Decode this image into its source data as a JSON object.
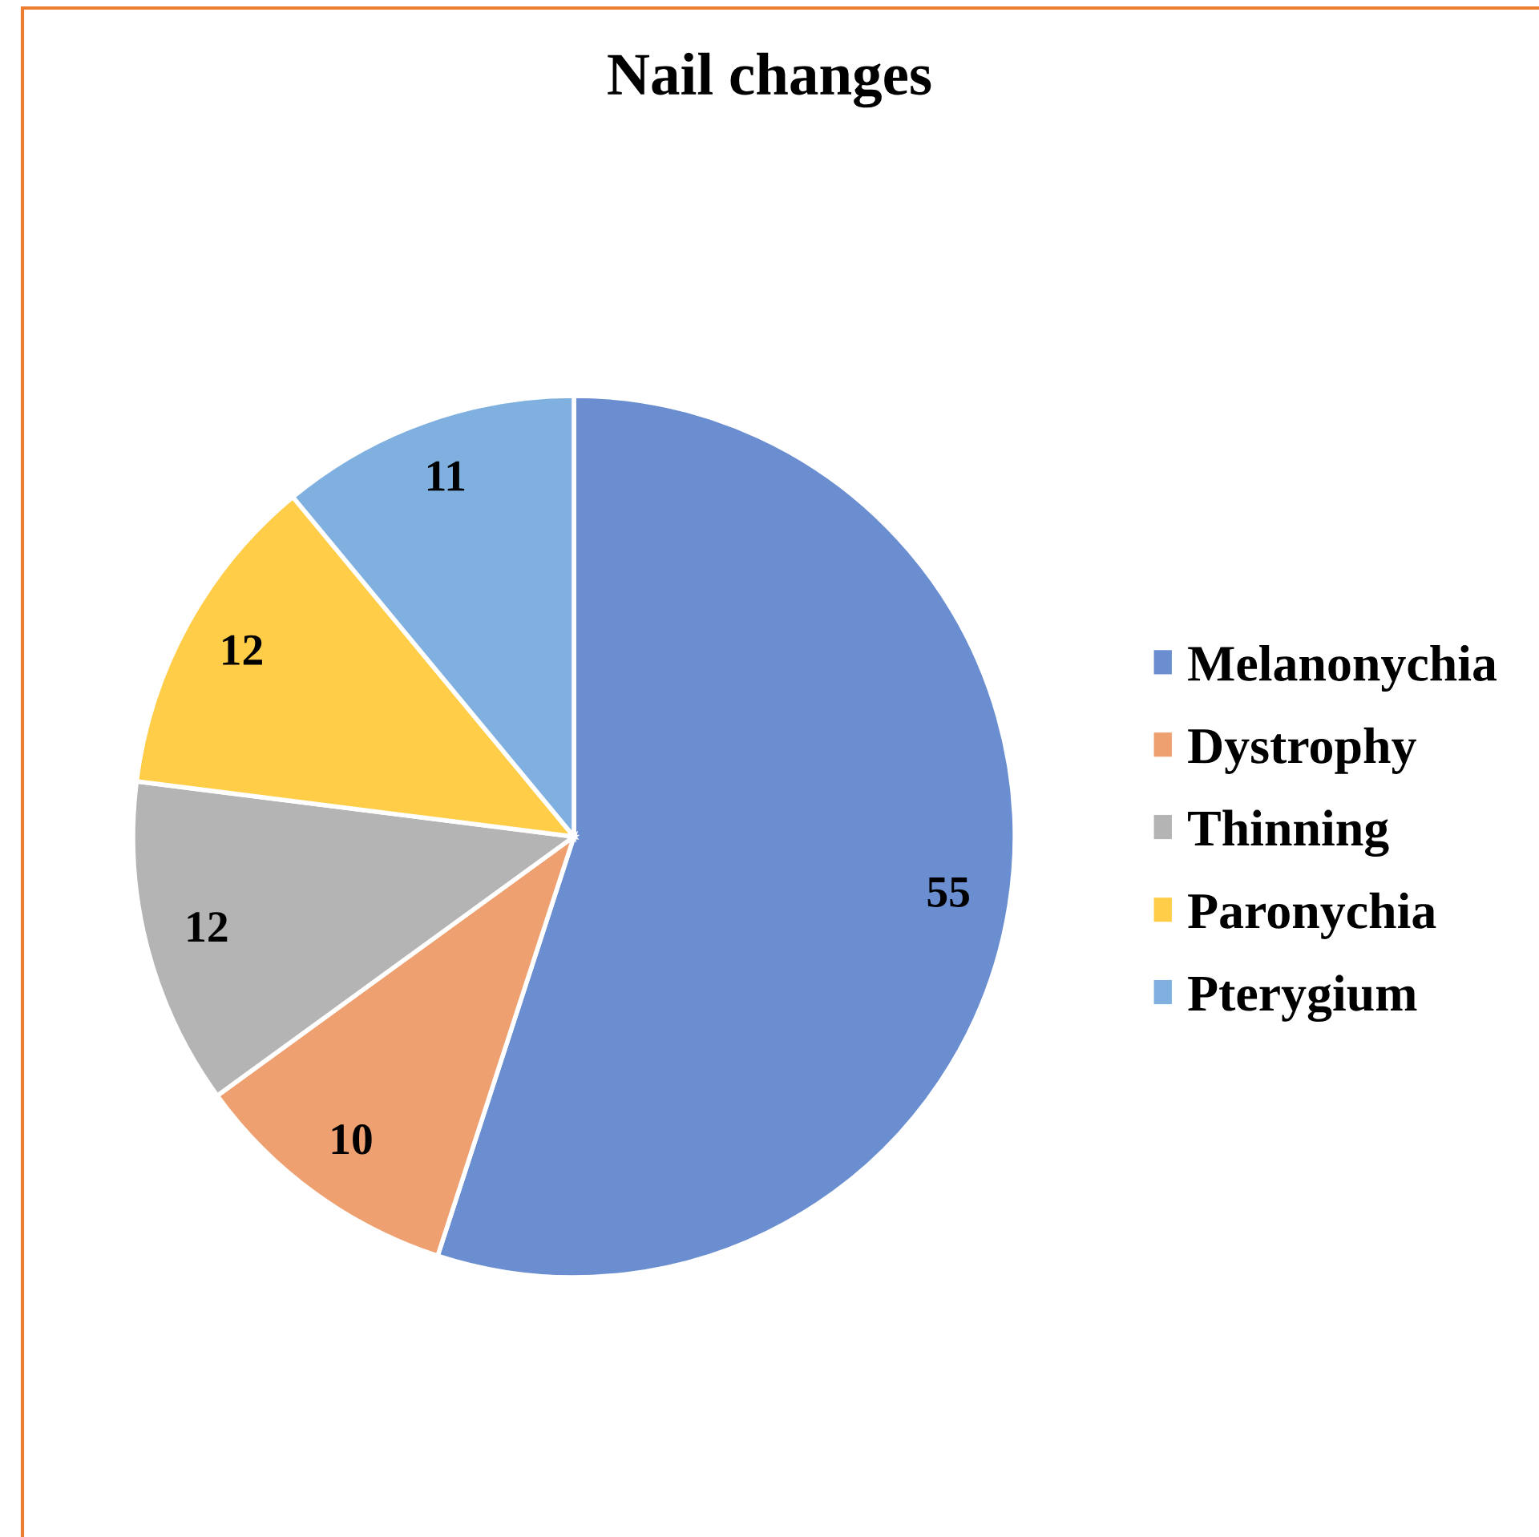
{
  "chart_data": {
    "type": "pie",
    "title": "Nail changes",
    "categories": [
      "Melanonychia",
      "Dystrophy",
      "Thinning",
      "Paronychia",
      "Pterygium"
    ],
    "values": [
      55,
      10,
      12,
      12,
      11
    ],
    "colors": [
      "#6a8ed0",
      "#efa070",
      "#b4b4b4",
      "#ffcd48",
      "#7fb0e0"
    ],
    "data_labels": true,
    "legend": "right"
  }
}
